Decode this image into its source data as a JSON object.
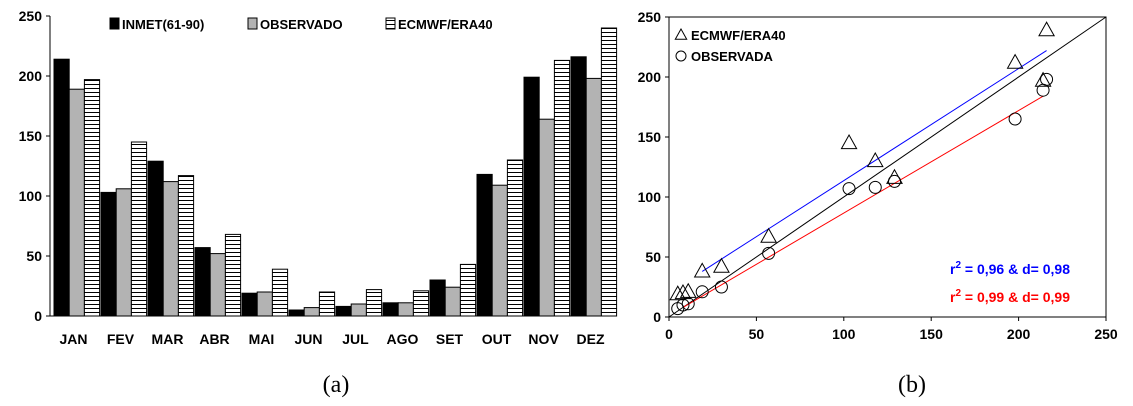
{
  "chart_data": [
    {
      "type": "bar",
      "categories": [
        "JAN",
        "FEV",
        "MAR",
        "ABR",
        "MAI",
        "JUN",
        "JUL",
        "AGO",
        "SET",
        "OUT",
        "NOV",
        "DEZ"
      ],
      "series": [
        {
          "name": "INMET(61-90)",
          "color": "#000000",
          "pattern": "solid",
          "values": [
            214,
            103,
            129,
            57,
            19,
            5,
            8,
            11,
            30,
            118,
            199,
            216
          ]
        },
        {
          "name": "OBSERVADO",
          "color": "#b3b3b3",
          "pattern": "solid",
          "values": [
            189,
            106,
            112,
            52,
            20,
            7,
            10,
            11,
            24,
            109,
            164,
            198
          ]
        },
        {
          "name": "ECMWF/ERA40",
          "color": "#ffffff",
          "pattern": "horizontal-stripes",
          "values": [
            197,
            145,
            117,
            68,
            39,
            20,
            22,
            21,
            43,
            130,
            213,
            240
          ]
        }
      ],
      "ylim": [
        0,
        250
      ],
      "yticks": [
        0,
        50,
        100,
        150,
        200,
        250
      ],
      "legend": "top",
      "caption": "(a)"
    },
    {
      "type": "scatter",
      "xlim": [
        0,
        250
      ],
      "ylim": [
        0,
        250
      ],
      "xticks": [
        0,
        50,
        100,
        150,
        200,
        250
      ],
      "yticks": [
        0,
        50,
        100,
        150,
        200,
        250
      ],
      "legend": "top-left",
      "series": [
        {
          "name": "ECMWF/ERA40",
          "marker": "triangle",
          "points": [
            [
              5,
              19
            ],
            [
              8,
              20
            ],
            [
              11,
              21
            ],
            [
              19,
              38
            ],
            [
              30,
              42
            ],
            [
              57,
              67
            ],
            [
              103,
              145
            ],
            [
              118,
              130
            ],
            [
              129,
              116
            ],
            [
              198,
              212
            ],
            [
              214,
              197
            ],
            [
              216,
              239
            ]
          ]
        },
        {
          "name": "OBSERVADA",
          "marker": "circle",
          "points": [
            [
              5,
              7
            ],
            [
              8,
              10
            ],
            [
              11,
              11
            ],
            [
              19,
              21
            ],
            [
              30,
              25
            ],
            [
              57,
              53
            ],
            [
              103,
              107
            ],
            [
              118,
              108
            ],
            [
              129,
              113
            ],
            [
              198,
              165
            ],
            [
              214,
              189
            ],
            [
              216,
              198
            ]
          ]
        }
      ],
      "fit_lines": [
        {
          "color": "#0000ff",
          "from": [
            19,
            38
          ],
          "to": [
            216,
            222
          ]
        },
        {
          "color": "#ff0000",
          "from": [
            8,
            8
          ],
          "to": [
            214,
            184
          ]
        }
      ],
      "identity_line": {
        "color": "#000000",
        "from": [
          0,
          0
        ],
        "to": [
          250,
          250
        ]
      },
      "annotations": [
        {
          "text": "r",
          "sup": "2",
          "rest": " = 0,96 & d= 0,98",
          "color": "#0000ff"
        },
        {
          "text": "r",
          "sup": "2",
          "rest": " = 0,99 & d= 0,99",
          "color": "#ff0000"
        }
      ],
      "caption": "(b)"
    }
  ]
}
